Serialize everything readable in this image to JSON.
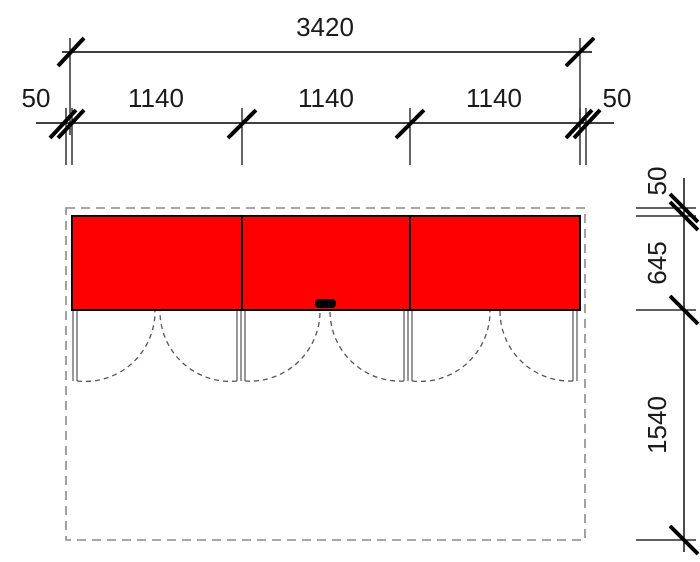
{
  "dimensions": {
    "overall_width": "3420",
    "left_edge": "50",
    "module_1": "1140",
    "module_2": "1140",
    "module_3": "1140",
    "right_edge": "50",
    "top_clearance": "50",
    "cabinet_depth": "645",
    "front_clearance": "1540"
  },
  "colors": {
    "cabinet_fill": "#ff0000",
    "line": "#000000",
    "dashed_outline": "#8a8a8a"
  },
  "cabinet": {
    "module_count": 3,
    "doors_per_module": 2
  }
}
